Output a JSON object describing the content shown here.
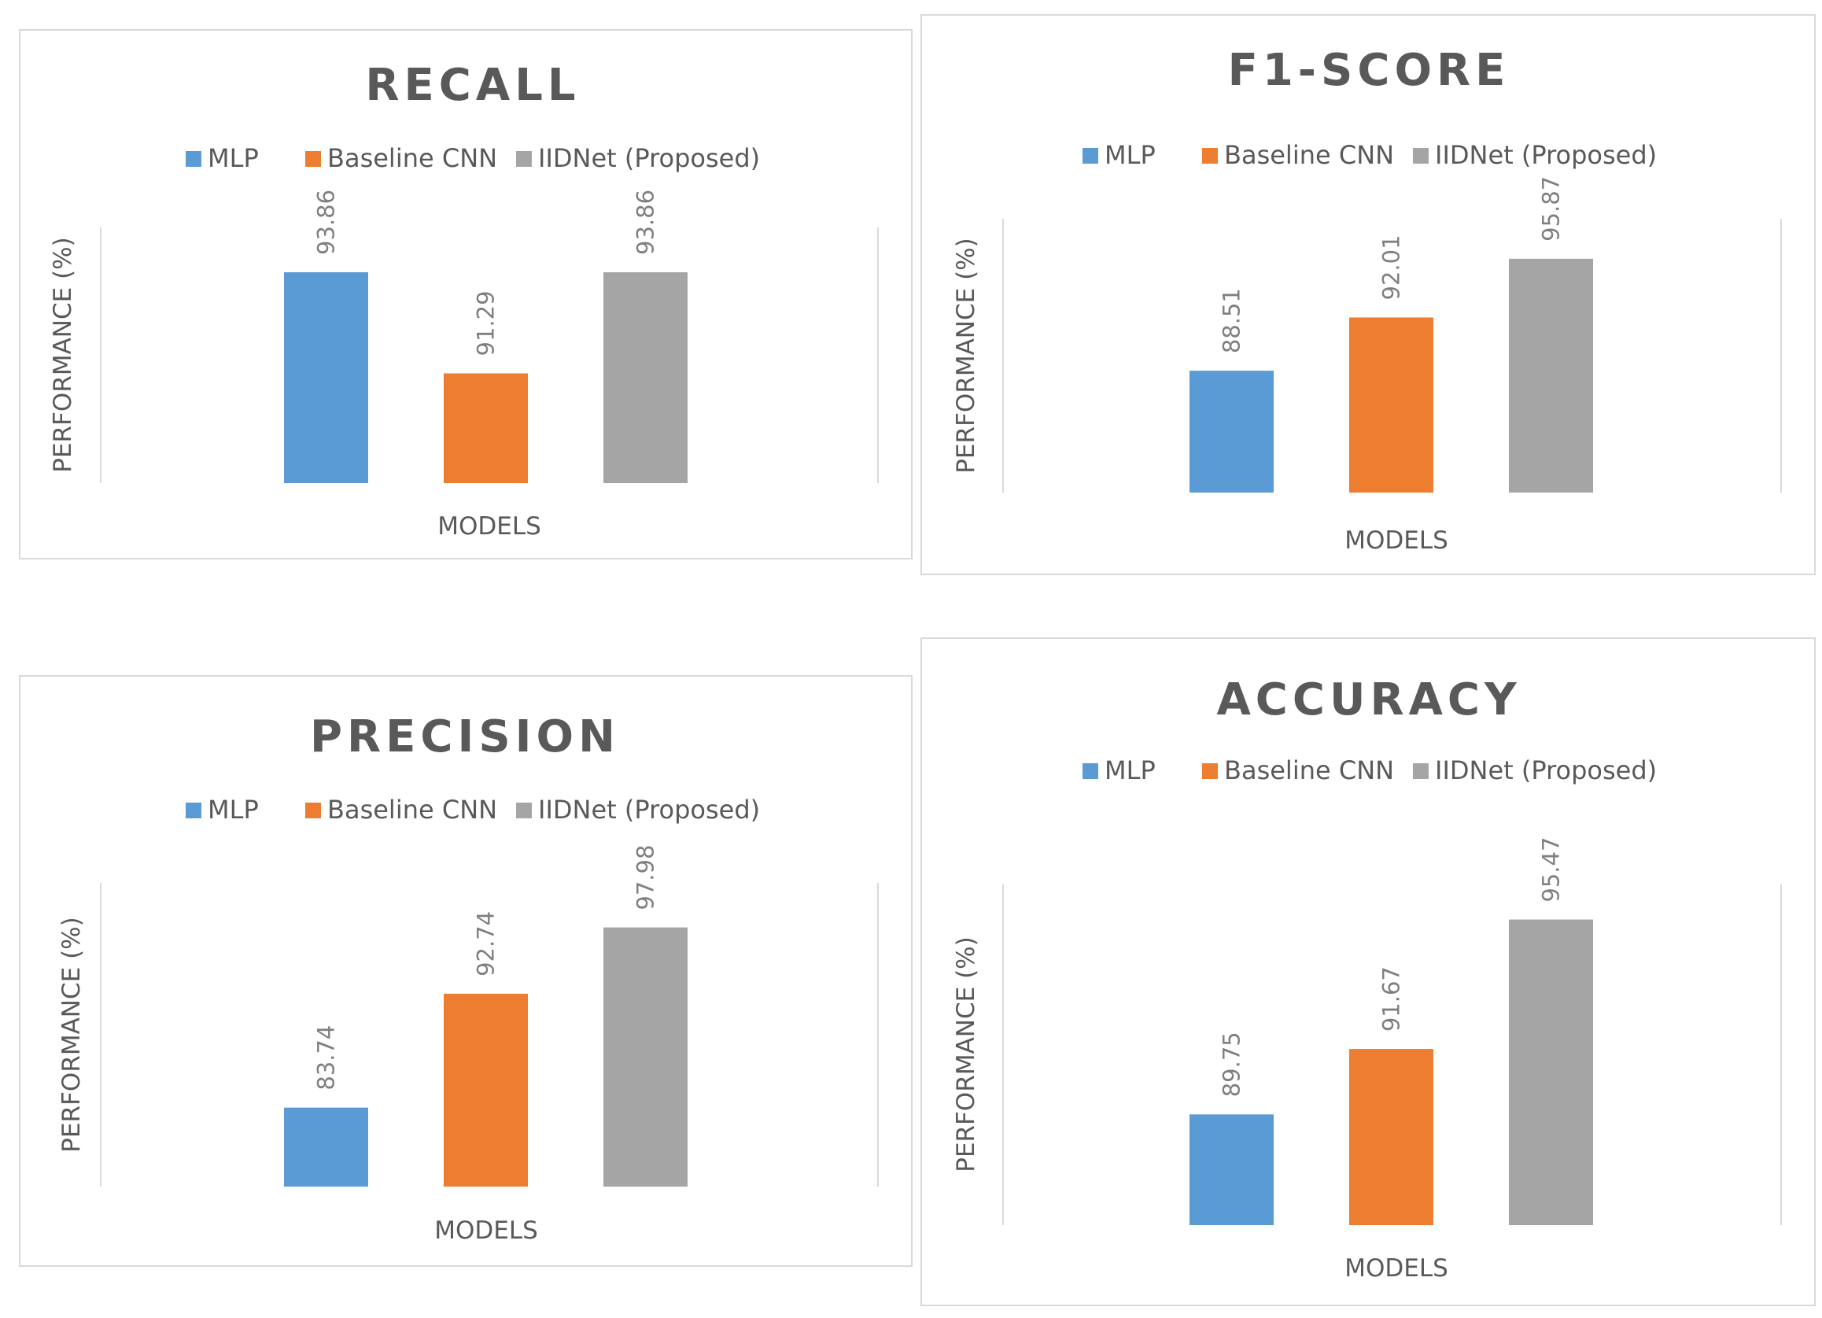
{
  "chart_data": [
    {
      "id": "recall",
      "type": "bar",
      "title": "RECALL",
      "xlabel": "MODELS",
      "ylabel": "PERFORMANCE  (%)",
      "series": [
        {
          "name": "MLP",
          "value": 93.86,
          "label": "93.86",
          "color": "#5b9bd5"
        },
        {
          "name": "Baseline CNN",
          "value": 91.29,
          "label": "91.29",
          "color": "#ed7d31"
        },
        {
          "name": "IIDNet (Proposed)",
          "value": 93.86,
          "label": "93.86",
          "color": "#a5a5a5"
        }
      ],
      "ylim": [
        88.5,
        95
      ]
    },
    {
      "id": "f1",
      "type": "bar",
      "title": "F1-SCORE",
      "xlabel": "MODELS",
      "ylabel": "PERFORMANCE (%)",
      "series": [
        {
          "name": "MLP",
          "value": 88.51,
          "label": "88.51",
          "color": "#5b9bd5"
        },
        {
          "name": "Baseline CNN",
          "value": 92.01,
          "label": "92.01",
          "color": "#ed7d31"
        },
        {
          "name": "IIDNet (Proposed)",
          "value": 95.87,
          "label": "95.87",
          "color": "#a5a5a5"
        }
      ],
      "ylim": [
        80.5,
        98.5
      ]
    },
    {
      "id": "precision",
      "type": "bar",
      "title": "PRECISION",
      "xlabel": "MODELS",
      "ylabel": "PERFORMANCE  (%)",
      "series": [
        {
          "name": "MLP",
          "value": 83.74,
          "label": "83.74",
          "color": "#5b9bd5"
        },
        {
          "name": "Baseline CNN",
          "value": 92.74,
          "label": "92.74",
          "color": "#ed7d31"
        },
        {
          "name": "IIDNet (Proposed)",
          "value": 97.98,
          "label": "97.98",
          "color": "#a5a5a5"
        }
      ],
      "ylim": [
        77.5,
        101.5
      ]
    },
    {
      "id": "accuracy",
      "type": "bar",
      "title": "ACCURACY",
      "xlabel": "MODELS",
      "ylabel": "PERFORMANCE (%)",
      "series": [
        {
          "name": "MLP",
          "value": 89.75,
          "label": "89.75",
          "color": "#5b9bd5"
        },
        {
          "name": "Baseline CNN",
          "value": 91.67,
          "label": "91.67",
          "color": "#ed7d31"
        },
        {
          "name": "IIDNet (Proposed)",
          "value": 95.47,
          "label": "95.47",
          "color": "#a5a5a5"
        }
      ],
      "ylim": [
        86.5,
        96.5
      ]
    }
  ]
}
